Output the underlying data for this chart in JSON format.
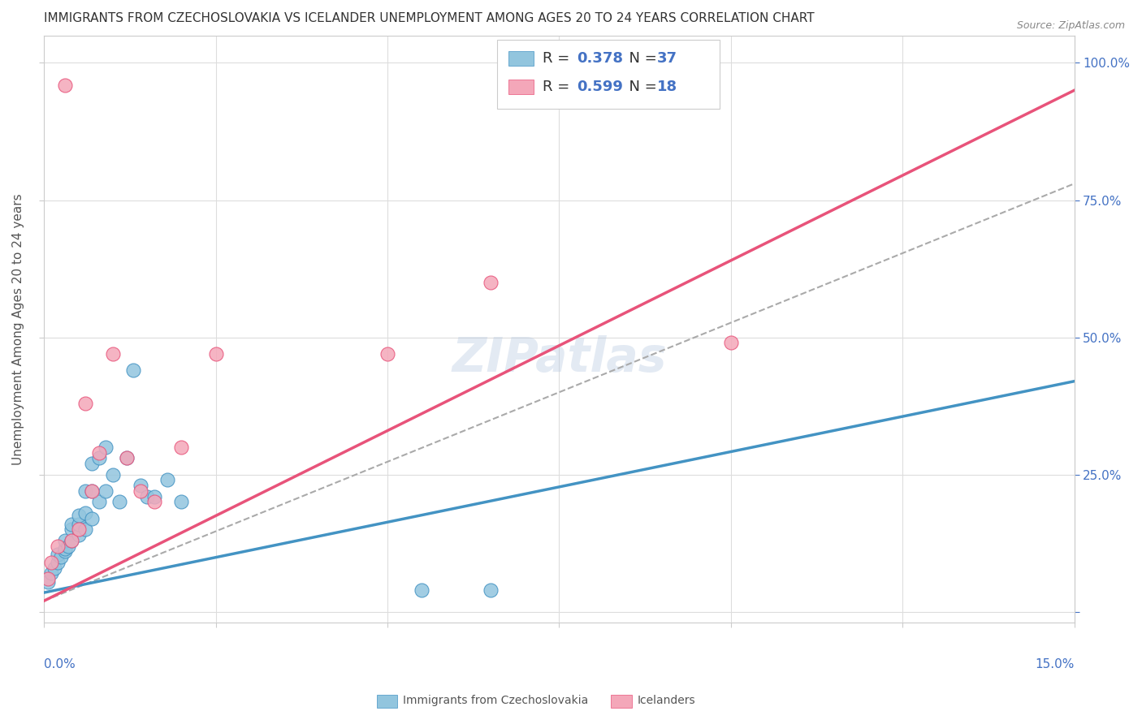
{
  "title": "IMMIGRANTS FROM CZECHOSLOVAKIA VS ICELANDER UNEMPLOYMENT AMONG AGES 20 TO 24 YEARS CORRELATION CHART",
  "source": "Source: ZipAtlas.com",
  "ylabel": "Unemployment Among Ages 20 to 24 years",
  "yticks": [
    0.0,
    0.25,
    0.5,
    0.75,
    1.0
  ],
  "ytick_labels": [
    "",
    "25.0%",
    "50.0%",
    "75.0%",
    "100.0%"
  ],
  "xticks": [
    0.0,
    0.025,
    0.05,
    0.075,
    0.1,
    0.125,
    0.15
  ],
  "xlim": [
    0.0,
    0.15
  ],
  "ylim": [
    -0.02,
    1.05
  ],
  "legend_R1": "0.378",
  "legend_N1": "37",
  "legend_R2": "0.599",
  "legend_N2": "18",
  "color_blue": "#92c5de",
  "color_pink": "#f4a7b9",
  "color_blue_line": "#4393c3",
  "color_pink_line": "#e8537a",
  "watermark": "ZIPatlas",
  "blue_scatter_x": [
    0.0005,
    0.001,
    0.0015,
    0.002,
    0.002,
    0.0025,
    0.003,
    0.003,
    0.003,
    0.0035,
    0.004,
    0.004,
    0.004,
    0.005,
    0.005,
    0.005,
    0.006,
    0.006,
    0.006,
    0.007,
    0.007,
    0.007,
    0.008,
    0.008,
    0.009,
    0.009,
    0.01,
    0.011,
    0.012,
    0.013,
    0.014,
    0.015,
    0.016,
    0.018,
    0.02,
    0.055,
    0.065
  ],
  "blue_scatter_y": [
    0.055,
    0.07,
    0.08,
    0.09,
    0.105,
    0.1,
    0.11,
    0.115,
    0.13,
    0.12,
    0.13,
    0.15,
    0.16,
    0.14,
    0.16,
    0.175,
    0.15,
    0.18,
    0.22,
    0.17,
    0.22,
    0.27,
    0.2,
    0.28,
    0.22,
    0.3,
    0.25,
    0.2,
    0.28,
    0.44,
    0.23,
    0.21,
    0.21,
    0.24,
    0.2,
    0.04,
    0.04
  ],
  "pink_scatter_x": [
    0.0005,
    0.001,
    0.002,
    0.003,
    0.004,
    0.005,
    0.006,
    0.007,
    0.008,
    0.01,
    0.012,
    0.014,
    0.016,
    0.02,
    0.025,
    0.05,
    0.065,
    0.1
  ],
  "pink_scatter_y": [
    0.06,
    0.09,
    0.12,
    0.96,
    0.13,
    0.15,
    0.38,
    0.22,
    0.29,
    0.47,
    0.28,
    0.22,
    0.2,
    0.3,
    0.47,
    0.47,
    0.6,
    0.49
  ],
  "blue_line_x": [
    0.0,
    0.15
  ],
  "blue_line_y": [
    0.035,
    0.42
  ],
  "pink_line_x": [
    0.0,
    0.15
  ],
  "pink_line_y": [
    0.02,
    0.95
  ],
  "gray_line_x": [
    0.0,
    0.15
  ],
  "gray_line_y": [
    0.02,
    0.78
  ]
}
